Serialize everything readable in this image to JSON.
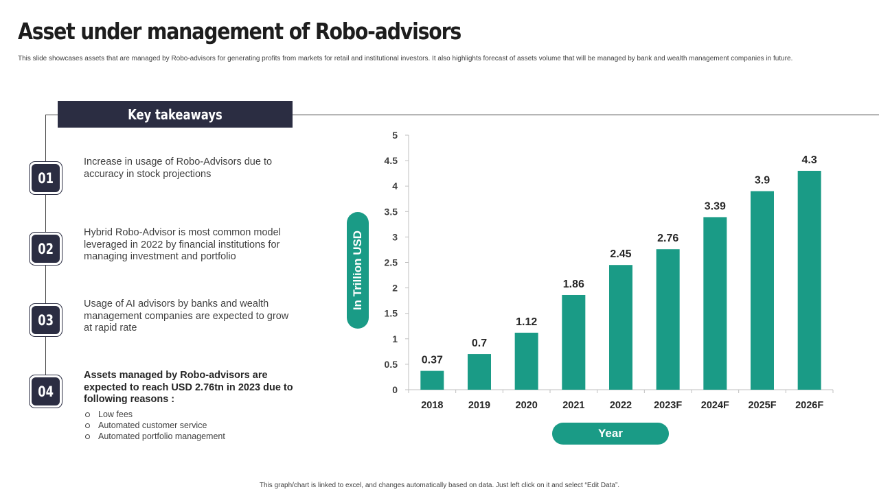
{
  "page": {
    "title": "Asset under management of Robo-advisors",
    "subtitle": "This slide showcases assets that are managed by Robo-advisors for generating profits from markets for retail and institutional investors. It also highlights  forecast of assets volume that will be managed by bank and wealth management companies in  future.",
    "footer": "This graph/chart is linked to excel, and changes automatically based on data. Just left click on it and select “Edit Data”."
  },
  "takeaways": {
    "header": "Key takeaways",
    "items": [
      {
        "number": "01",
        "text": "Increase in usage of Robo-Advisors due to accuracy in stock projections"
      },
      {
        "number": "02",
        "text": "Hybrid Robo-Advisor is most common model leveraged in 2022 by financial institutions for managing investment and portfolio"
      },
      {
        "number": "03",
        "text": "Usage of AI advisors by banks and wealth management companies are expected to grow at rapid rate"
      },
      {
        "number": "04",
        "text": "Assets managed by Robo-advisors are expected to reach USD 2.76tn in 2023 due to following reasons :",
        "bullets": [
          "Low fees",
          "Automated customer service",
          "Automated portfolio management"
        ]
      }
    ]
  },
  "colors": {
    "bar": "#1a9b86",
    "dark": "#2b2d42",
    "axis": "#bfbfbf"
  },
  "chart_data": {
    "type": "bar",
    "title": "",
    "xlabel": "Year",
    "ylabel": "In Trillion USD",
    "categories": [
      "2018",
      "2019",
      "2020",
      "2021",
      "2022",
      "2023F",
      "2024F",
      "2025F",
      "2026F"
    ],
    "values": [
      0.37,
      0.7,
      1.12,
      1.86,
      2.45,
      2.76,
      3.39,
      3.9,
      4.3
    ],
    "data_labels": [
      "0.37",
      "0.7",
      "1.12",
      "1.86",
      "2.45",
      "2.76",
      "3.39",
      "3.9",
      "4.3"
    ],
    "yticks": [
      "0",
      "0.5",
      "1",
      "1.5",
      "2",
      "2.5",
      "3",
      "3.5",
      "4",
      "4.5",
      "5"
    ],
    "ylim": [
      0,
      5
    ],
    "grid": false,
    "legend": "none"
  }
}
